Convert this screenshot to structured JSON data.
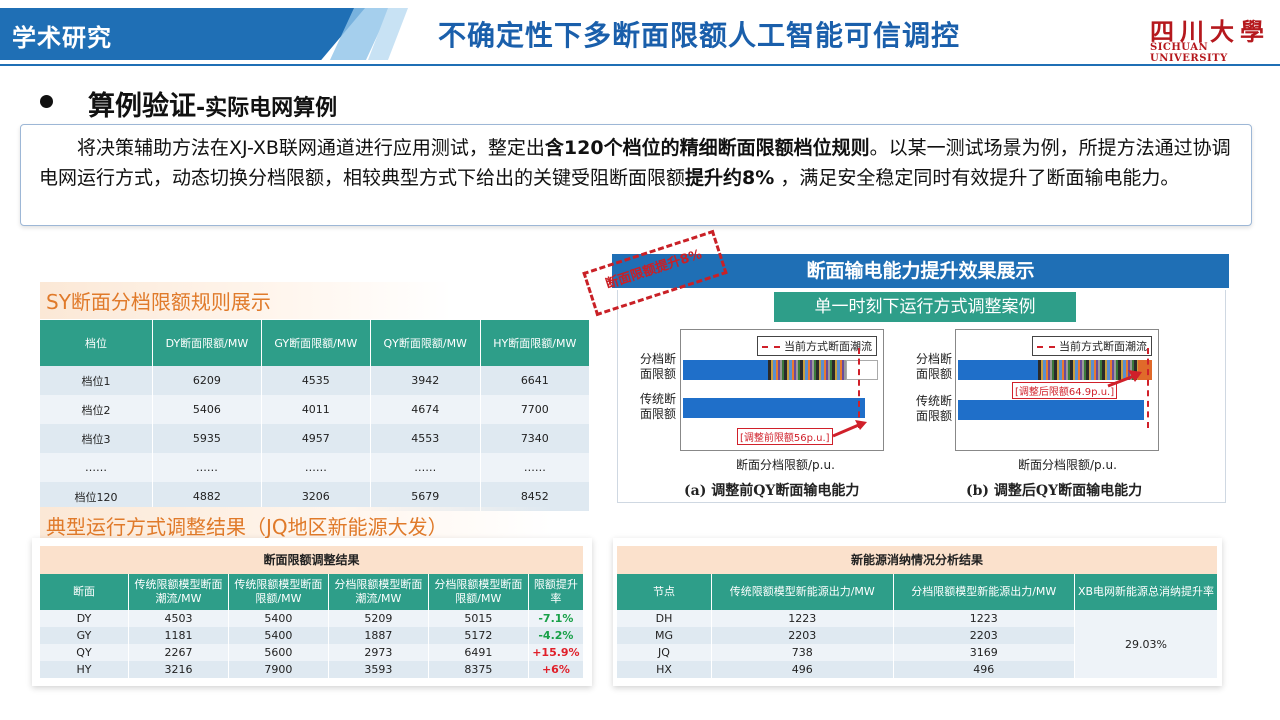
{
  "header": {
    "section_tag": "学术研究",
    "title": "不确定性下多断面限额人工智能可信调控",
    "logo_cn": "四川大學",
    "logo_en": "SICHUAN UNIVERSITY"
  },
  "subheading": {
    "main": "算例验证",
    "tail": "-实际电网算例"
  },
  "intro": {
    "p1": "将决策辅助方法在XJ-XB联网通道进行应用测试，整定出",
    "b1": "含120个档位的精细断面限额档位规则",
    "p2": "。以某一测试场景为例，所提方法通过协调电网运行方式，动态切换分档限额，相较典型方式下给出的关键受阻断面限额",
    "b2": "提升约8%",
    "p3": " ，满足安全稳定同时有效提升了断面输电能力。"
  },
  "sy_section": {
    "heading": "SY断面分档限额规则展示",
    "headers": [
      "档位",
      "DY断面限额/MW",
      "GY断面限额/MW",
      "QY断面限额/MW",
      "HY断面限额/MW"
    ],
    "rows": [
      [
        "档位1",
        "6209",
        "4535",
        "3942",
        "6641"
      ],
      [
        "档位2",
        "5406",
        "4011",
        "4674",
        "7700"
      ],
      [
        "档位3",
        "5935",
        "4957",
        "4553",
        "7340"
      ],
      [
        "……",
        "……",
        "……",
        "……",
        "……"
      ],
      [
        "档位120",
        "4882",
        "3206",
        "5679",
        "8452"
      ]
    ]
  },
  "panel": {
    "title": "断面输电能力提升效果展示",
    "subtitle": "单一时刻下运行方式调整案例",
    "stamp": "断面限额提升8%",
    "legend": "当前方式断面潮流",
    "y1": "分档断面限额",
    "y2": "传统断面限额",
    "xlabel": "断面分档限额/p.u.",
    "ann_left": "[调整前限额56p.u.]",
    "ann_right": "[调整后限额64.9p.u.]",
    "cap_left": "(a) 调整前QY断面输电能力",
    "cap_right": "(b) 调整后QY断面输电能力"
  },
  "jq_section": {
    "heading": "典型运行方式调整结果（JQ地区新能源大发）"
  },
  "limit_table": {
    "caption": "断面限额调整结果",
    "headers": [
      "断面",
      "传统限额模型断面潮流/MW",
      "传统限额模型断面限额/MW",
      "分档限额模型断面潮流/MW",
      "分档限额模型断面限额/MW",
      "限额提升率"
    ],
    "rows": [
      [
        "DY",
        "4503",
        "5400",
        "5209",
        "5015",
        "-7.1%"
      ],
      [
        "GY",
        "1181",
        "5400",
        "1887",
        "5172",
        "-4.2%"
      ],
      [
        "QY",
        "2267",
        "5600",
        "2973",
        "6491",
        "+15.9%"
      ],
      [
        "HY",
        "3216",
        "7900",
        "3593",
        "8375",
        "+6%"
      ]
    ]
  },
  "nre_table": {
    "caption": "新能源消纳情况分析结果",
    "headers": [
      "节点",
      "传统限额模型新能源出力/MW",
      "分档限额模型新能源出力/MW",
      "XB电网新能源总消纳提升率"
    ],
    "rows": [
      [
        "DH",
        "1223",
        "1223"
      ],
      [
        "MG",
        "2203",
        "2203"
      ],
      [
        "JQ",
        "738",
        "3169"
      ],
      [
        "HX",
        "496",
        "496"
      ]
    ],
    "merged": "29.03%"
  }
}
